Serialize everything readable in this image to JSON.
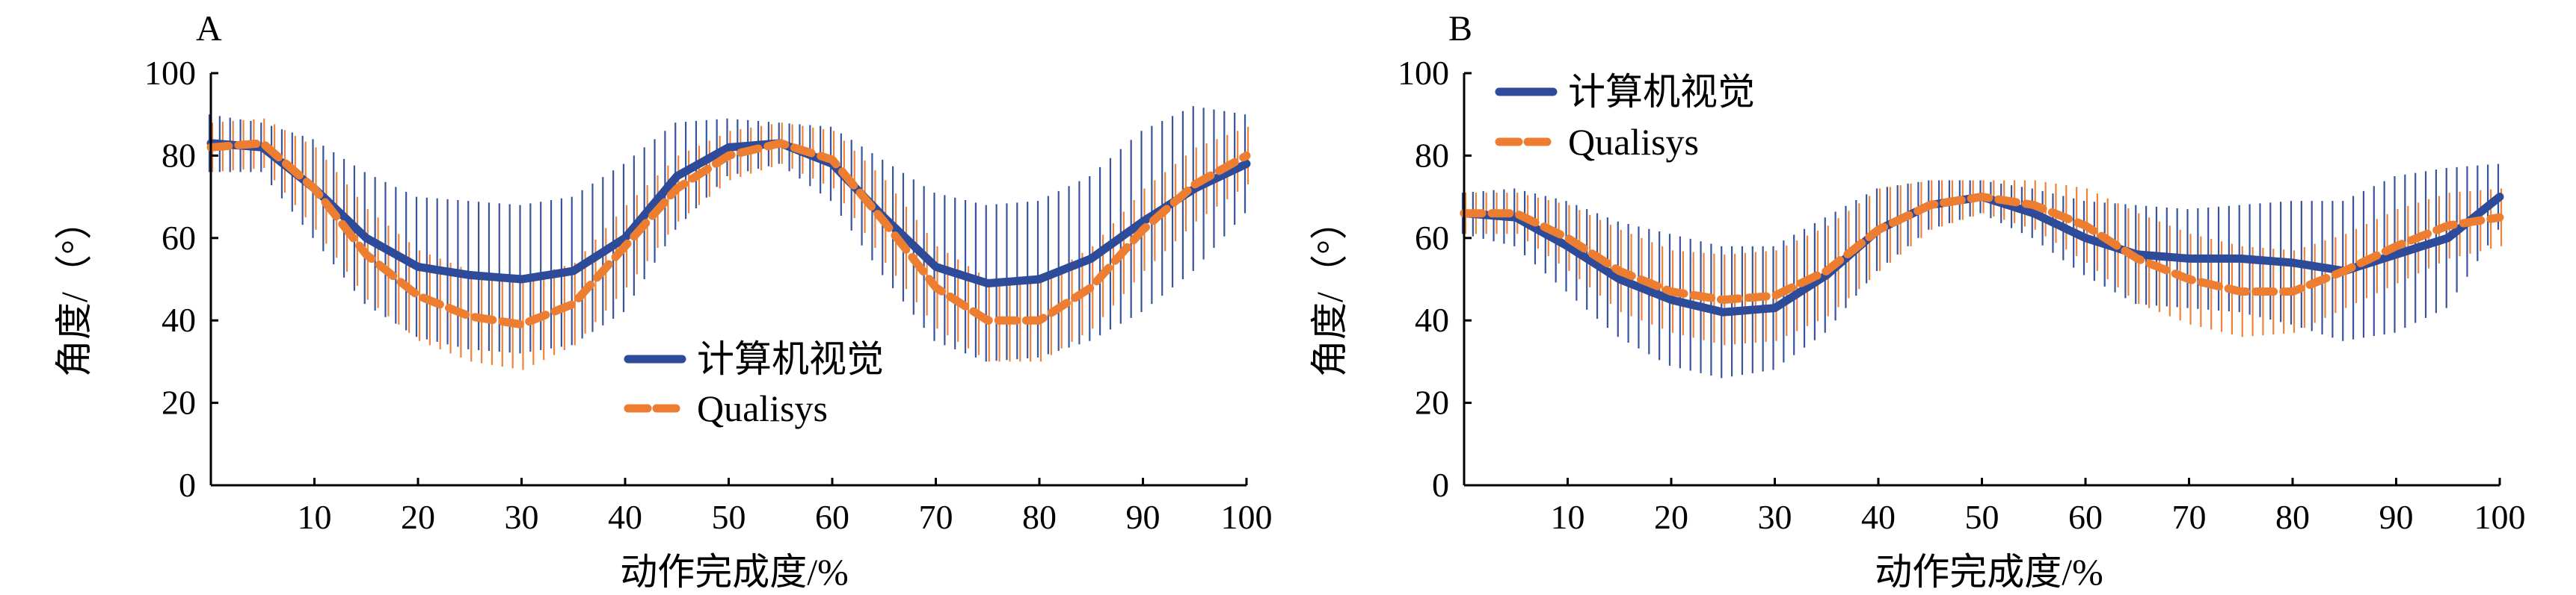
{
  "chart_data": [
    {
      "type": "line",
      "panel_label": "A",
      "xlabel": "动作完成度/%",
      "ylabel": "角度/（°）",
      "xlim": [
        0,
        100
      ],
      "ylim": [
        0,
        100
      ],
      "x_ticks": [
        "10",
        "20",
        "30",
        "40",
        "50",
        "60",
        "70",
        "80",
        "90",
        "100"
      ],
      "y_ticks": [
        "0",
        "20",
        "40",
        "60",
        "80",
        "100"
      ],
      "legend_position": "center-bottom",
      "error_bars": "vertical, one per percent of motion completion",
      "series": [
        {
          "name": "计算机视觉",
          "color": "#2e4b9a",
          "line_style": "solid",
          "x": [
            0,
            5,
            10,
            15,
            20,
            25,
            30,
            35,
            40,
            45,
            50,
            55,
            60,
            65,
            70,
            75,
            80,
            85,
            90,
            95,
            100
          ],
          "mean": [
            83,
            82,
            72,
            60,
            53,
            51,
            50,
            52,
            60,
            75,
            82,
            83,
            78,
            65,
            53,
            49,
            50,
            55,
            64,
            72,
            78
          ],
          "sd": [
            7,
            6,
            12,
            16,
            17,
            18,
            18,
            18,
            18,
            13,
            7,
            5,
            9,
            14,
            18,
            19,
            19,
            20,
            22,
            20,
            12
          ]
        },
        {
          "name": "Qualisys",
          "color": "#ed7d31",
          "line_style": "dashed",
          "x": [
            0,
            5,
            10,
            15,
            20,
            25,
            30,
            35,
            40,
            45,
            50,
            55,
            60,
            65,
            70,
            75,
            80,
            85,
            90,
            95,
            100
          ],
          "mean": [
            82,
            83,
            72,
            56,
            46,
            41,
            39,
            44,
            58,
            72,
            80,
            83,
            79,
            64,
            48,
            40,
            40,
            48,
            62,
            73,
            80
          ],
          "sd": [
            6,
            6,
            10,
            11,
            11,
            11,
            11,
            10,
            10,
            8,
            6,
            5,
            7,
            10,
            10,
            10,
            10,
            10,
            10,
            9,
            7
          ]
        }
      ]
    },
    {
      "type": "line",
      "panel_label": "B",
      "xlabel": "动作完成度/%",
      "ylabel": "角度/（°）",
      "xlim": [
        0,
        100
      ],
      "ylim": [
        0,
        100
      ],
      "x_ticks": [
        "10",
        "20",
        "30",
        "40",
        "50",
        "60",
        "70",
        "80",
        "90",
        "100"
      ],
      "y_ticks": [
        "0",
        "20",
        "40",
        "60",
        "80",
        "100"
      ],
      "legend_position": "top-left",
      "error_bars": "vertical, one per percent of motion completion",
      "series": [
        {
          "name": "计算机视觉",
          "color": "#2e4b9a",
          "line_style": "solid",
          "x": [
            0,
            5,
            10,
            15,
            20,
            25,
            30,
            35,
            40,
            45,
            50,
            55,
            60,
            65,
            70,
            75,
            80,
            85,
            90,
            95,
            100
          ],
          "mean": [
            66,
            65,
            58,
            50,
            45,
            42,
            43,
            51,
            62,
            68,
            70,
            66,
            60,
            56,
            55,
            55,
            54,
            52,
            56,
            60,
            70
          ],
          "sd": [
            5,
            7,
            11,
            14,
            16,
            16,
            15,
            14,
            10,
            6,
            4,
            6,
            9,
            12,
            12,
            13,
            15,
            17,
            19,
            17,
            8
          ]
        },
        {
          "name": "Qualisys",
          "color": "#ed7d31",
          "line_style": "dashed",
          "x": [
            0,
            5,
            10,
            15,
            20,
            25,
            30,
            35,
            40,
            45,
            50,
            55,
            60,
            65,
            70,
            75,
            80,
            85,
            90,
            95,
            100
          ],
          "mean": [
            66,
            66,
            60,
            52,
            47,
            45,
            46,
            52,
            62,
            68,
            70,
            68,
            63,
            55,
            50,
            47,
            47,
            52,
            58,
            63,
            65
          ],
          "sd": [
            5,
            5,
            8,
            10,
            10,
            11,
            11,
            11,
            10,
            6,
            4,
            6,
            9,
            11,
            11,
            11,
            10,
            9,
            9,
            8,
            7
          ]
        }
      ]
    }
  ]
}
